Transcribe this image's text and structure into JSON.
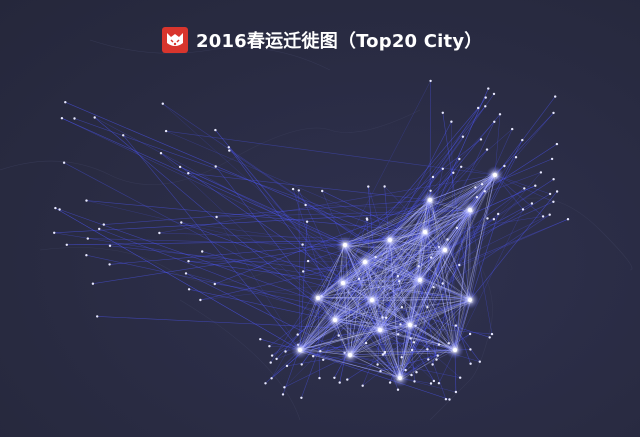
{
  "title": {
    "text": "2016春运迁徙图（Top20 City）",
    "logo_icon": "maoyan-cat-logo-icon"
  },
  "colors": {
    "background": "#2b2d44",
    "line": "#4f58ff",
    "line_glow": "#8c93ff",
    "hub": "#ffffff",
    "logo": "#d8352d"
  },
  "map": {
    "basemap": "dark",
    "flow_style": "migration lines",
    "hub_count": 20
  }
}
